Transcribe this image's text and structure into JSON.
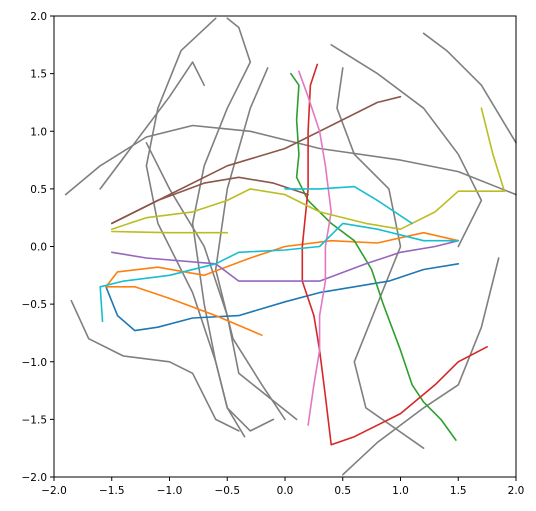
{
  "chart_data": {
    "type": "line",
    "xlim": [
      -2,
      2
    ],
    "ylim": [
      -2,
      2
    ],
    "xticks": [
      {
        "value": -2,
        "label": "−2.0"
      },
      {
        "value": -1.5,
        "label": "−1.5"
      },
      {
        "value": -1,
        "label": "−1.0"
      },
      {
        "value": -0.5,
        "label": "−0.5"
      },
      {
        "value": 0,
        "label": "0.0"
      },
      {
        "value": 0.5,
        "label": "0.5"
      },
      {
        "value": 1,
        "label": "1.0"
      },
      {
        "value": 1.5,
        "label": "1.5"
      },
      {
        "value": 2,
        "label": "2.0"
      }
    ],
    "yticks": [
      {
        "value": -2,
        "label": "−2.0"
      },
      {
        "value": -1.5,
        "label": "−1.5"
      },
      {
        "value": -1,
        "label": "−1.0"
      },
      {
        "value": -0.5,
        "label": "−0.5"
      },
      {
        "value": 0,
        "label": "0.0"
      },
      {
        "value": 0.5,
        "label": "0.5"
      },
      {
        "value": 1,
        "label": "1.0"
      },
      {
        "value": 1.5,
        "label": "1.5"
      },
      {
        "value": 2,
        "label": "2.0"
      }
    ],
    "series": [
      {
        "color": "#7f7f7f",
        "x": [
          -1.9,
          -1.6,
          -1.2,
          -0.8,
          -0.3,
          0.3,
          1.0,
          1.5,
          2.0
        ],
        "values": [
          0.45,
          0.7,
          0.95,
          1.05,
          1.0,
          0.85,
          0.75,
          0.65,
          0.45
        ]
      },
      {
        "color": "#7f7f7f",
        "x": [
          -0.5,
          -0.4,
          -0.3,
          -0.5,
          -0.7,
          -0.8,
          -0.7,
          -0.6,
          -0.5,
          -0.3,
          -0.1
        ],
        "values": [
          1.98,
          1.9,
          1.6,
          1.2,
          0.7,
          0.2,
          -0.5,
          -1.0,
          -1.4,
          -1.6,
          -1.5
        ]
      },
      {
        "color": "#7f7f7f",
        "x": [
          -0.6,
          -0.9,
          -1.1,
          -1.2,
          -1.1,
          -0.8,
          -0.6,
          -0.5,
          -0.35
        ],
        "values": [
          1.98,
          1.7,
          1.2,
          0.7,
          0.2,
          -0.4,
          -1.0,
          -1.4,
          -1.65
        ]
      },
      {
        "color": "#7f7f7f",
        "x": [
          0.4,
          0.8,
          1.2,
          1.5,
          1.7,
          1.5
        ],
        "values": [
          1.75,
          1.5,
          1.2,
          0.8,
          0.4,
          0.0
        ]
      },
      {
        "color": "#7f7f7f",
        "x": [
          1.2,
          1.4,
          1.7,
          2.0
        ],
        "values": [
          1.85,
          1.7,
          1.4,
          0.9
        ]
      },
      {
        "color": "#7f7f7f",
        "x": [
          -1.85,
          -1.7,
          -1.4,
          -1.0,
          -0.8,
          -0.6,
          -0.4
        ],
        "values": [
          -0.47,
          -0.8,
          -0.95,
          -1.0,
          -1.1,
          -1.5,
          -1.6
        ]
      },
      {
        "color": "#7f7f7f",
        "x": [
          0.5,
          0.8,
          1.2,
          1.5,
          1.7,
          1.85
        ],
        "values": [
          -1.98,
          -1.7,
          -1.4,
          -1.2,
          -0.7,
          -0.1
        ]
      },
      {
        "color": "#7f7f7f",
        "x": [
          -0.15,
          -0.3,
          -0.5,
          -0.6,
          -0.45,
          -0.2,
          0.0
        ],
        "values": [
          1.55,
          1.2,
          0.5,
          -0.2,
          -0.8,
          -1.2,
          -1.5
        ]
      },
      {
        "color": "#7f7f7f",
        "x": [
          0.5,
          0.45,
          0.6,
          0.9,
          1.0,
          0.8,
          0.6,
          0.7,
          1.2
        ],
        "values": [
          1.55,
          1.2,
          0.8,
          0.5,
          0.0,
          -0.5,
          -1.0,
          -1.4,
          -1.75
        ]
      },
      {
        "color": "#7f7f7f",
        "x": [
          -1.6,
          -1.3,
          -1.0,
          -0.8,
          -0.7
        ],
        "values": [
          0.5,
          0.9,
          1.3,
          1.6,
          1.4
        ]
      },
      {
        "color": "#7f7f7f",
        "x": [
          -1.2,
          -1.0,
          -0.7,
          -0.5,
          -0.4,
          0.1
        ],
        "values": [
          0.9,
          0.5,
          0.0,
          -0.6,
          -1.1,
          -1.5
        ]
      },
      {
        "color": "#1f77b4",
        "x": [
          -1.55,
          -1.45,
          -1.3,
          -1.1,
          -0.8,
          -0.4,
          0,
          0.3,
          0.6,
          0.9,
          1.2,
          1.5
        ],
        "values": [
          -0.35,
          -0.6,
          -0.73,
          -0.7,
          -0.62,
          -0.6,
          -0.48,
          -0.4,
          -0.35,
          -0.3,
          -0.2,
          -0.15
        ]
      },
      {
        "color": "#ff7f0e",
        "x": [
          -0.2,
          -0.6,
          -1.0,
          -1.3,
          -1.55,
          -1.45,
          -1.1,
          -0.7,
          -0.3,
          0,
          0.4,
          0.8,
          1.2,
          1.5
        ],
        "values": [
          -0.77,
          -0.6,
          -0.45,
          -0.35,
          -0.35,
          -0.22,
          -0.18,
          -0.25,
          -0.1,
          0.0,
          0.05,
          0.03,
          0.12,
          0.05
        ]
      },
      {
        "color": "#2ca02c",
        "x": [
          0.05,
          0.12,
          0.1,
          0.12,
          0.1,
          0.2,
          0.4,
          0.6,
          0.75,
          0.85,
          1.0,
          1.1,
          1.2,
          1.35,
          1.48
        ],
        "values": [
          1.5,
          1.4,
          1.1,
          0.8,
          0.6,
          0.4,
          0.2,
          0.05,
          -0.2,
          -0.5,
          -0.9,
          -1.2,
          -1.35,
          -1.5,
          -1.68
        ]
      },
      {
        "color": "#d62728",
        "x": [
          0.28,
          0.22,
          0.2,
          0.2,
          0.15,
          0.15,
          0.25,
          0.3,
          0.35,
          0.4,
          0.6,
          1.0,
          1.3,
          1.5,
          1.75
        ],
        "values": [
          1.58,
          1.4,
          1.0,
          0.5,
          0.0,
          -0.3,
          -0.6,
          -0.9,
          -1.3,
          -1.72,
          -1.65,
          -1.45,
          -1.2,
          -1.0,
          -0.87
        ]
      },
      {
        "color": "#9467bd",
        "x": [
          -1.5,
          -1.2,
          -0.6,
          -0.4,
          -0.1,
          0.3,
          0.7,
          1.0,
          1.3,
          1.5
        ],
        "values": [
          -0.05,
          -0.1,
          -0.15,
          -0.3,
          -0.3,
          -0.3,
          -0.15,
          -0.05,
          0.0,
          0.05
        ]
      },
      {
        "color": "#8c564b",
        "x": [
          -1.5,
          -1.1,
          -0.7,
          -0.4,
          -0.1,
          0.2
        ],
        "values": [
          0.2,
          0.4,
          0.55,
          0.6,
          0.55,
          0.45
        ]
      },
      {
        "color": "#8c564b",
        "x": [
          -1.5,
          -1.0,
          -0.5,
          0,
          0.4,
          0.8,
          1.0
        ],
        "values": [
          0.2,
          0.45,
          0.7,
          0.85,
          1.05,
          1.25,
          1.3
        ]
      },
      {
        "color": "#e377c2",
        "x": [
          0.12,
          0.2,
          0.3,
          0.35,
          0.4,
          0.35,
          0.35,
          0.3,
          0.3,
          0.25,
          0.2
        ],
        "values": [
          1.52,
          1.3,
          1.0,
          0.7,
          0.3,
          0.0,
          -0.3,
          -0.6,
          -0.9,
          -1.2,
          -1.55
        ]
      },
      {
        "color": "#bcbd22",
        "x": [
          -1.5,
          -1.2,
          -0.8,
          -0.5,
          -0.3,
          0,
          0.3,
          0.7,
          1.0,
          1.3,
          1.5,
          1.7,
          1.9,
          1.8,
          1.7
        ],
        "values": [
          0.15,
          0.25,
          0.3,
          0.4,
          0.5,
          0.45,
          0.3,
          0.2,
          0.15,
          0.3,
          0.48,
          0.48,
          0.48,
          0.8,
          1.2
        ]
      },
      {
        "color": "#bcbd22",
        "x": [
          -1.5,
          -1.0,
          -0.5
        ],
        "values": [
          0.13,
          0.12,
          0.12
        ]
      },
      {
        "color": "#17becf",
        "x": [
          -1.58,
          -1.6,
          -1.4,
          -1.0,
          -0.6,
          -0.4,
          0,
          0.3,
          0.5,
          0.8,
          1.2,
          1.5
        ],
        "values": [
          -0.65,
          -0.35,
          -0.3,
          -0.25,
          -0.15,
          -0.05,
          -0.03,
          0.0,
          0.2,
          0.15,
          0.05,
          0.05
        ]
      },
      {
        "color": "#17becf",
        "x": [
          0,
          0.3,
          0.6,
          0.8,
          1.1
        ],
        "values": [
          0.5,
          0.5,
          0.52,
          0.4,
          0.2
        ]
      }
    ]
  }
}
